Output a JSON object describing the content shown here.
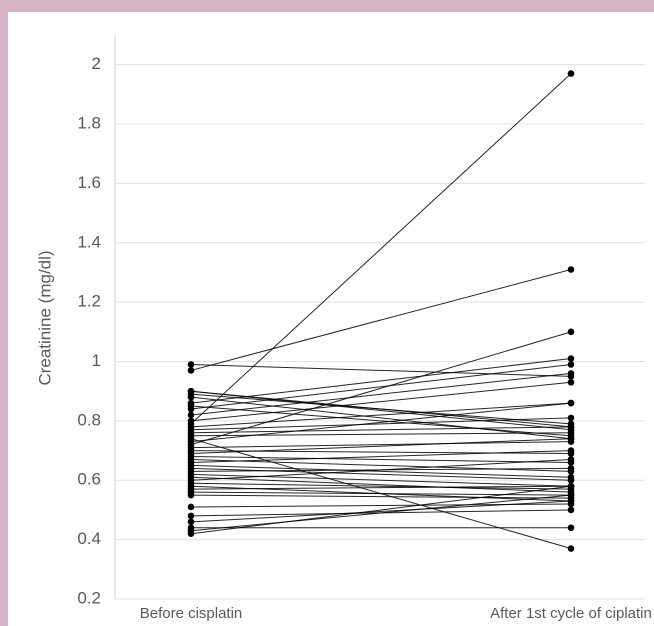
{
  "chart_data": {
    "type": "paired-line",
    "y_label": "Creatinine (mg/dl)",
    "categories": [
      "Before cisplatin",
      "After 1st cycle of ciplatin"
    ],
    "color": "#000000",
    "grid": true,
    "ylim": [
      0.2,
      2.1
    ],
    "yticks": [
      0.2,
      0.4,
      0.6,
      0.8,
      1,
      1.2,
      1.4,
      1.6,
      1.8,
      2
    ],
    "series": [
      {
        "values": [
          0.79,
          1.97
        ]
      },
      {
        "values": [
          0.97,
          1.31
        ]
      },
      {
        "values": [
          0.72,
          1.1
        ]
      },
      {
        "values": [
          0.99,
          0.95
        ]
      },
      {
        "values": [
          0.74,
          0.37
        ]
      },
      {
        "values": [
          0.9,
          0.77
        ]
      },
      {
        "values": [
          0.89,
          0.79
        ]
      },
      {
        "values": [
          0.88,
          0.74
        ]
      },
      {
        "values": [
          0.86,
          1.01
        ]
      },
      {
        "values": [
          0.84,
          0.99
        ]
      },
      {
        "values": [
          0.82,
          0.96
        ]
      },
      {
        "values": [
          0.8,
          0.93
        ]
      },
      {
        "values": [
          0.78,
          0.86
        ]
      },
      {
        "values": [
          0.77,
          0.81
        ]
      },
      {
        "values": [
          0.76,
          0.78
        ]
      },
      {
        "values": [
          0.75,
          0.76
        ]
      },
      {
        "values": [
          0.73,
          0.86
        ]
      },
      {
        "values": [
          0.71,
          0.73
        ]
      },
      {
        "values": [
          0.7,
          0.69
        ]
      },
      {
        "values": [
          0.69,
          0.74
        ]
      },
      {
        "values": [
          0.68,
          0.66
        ]
      },
      {
        "values": [
          0.67,
          0.63
        ]
      },
      {
        "values": [
          0.66,
          0.7
        ]
      },
      {
        "values": [
          0.65,
          0.61
        ]
      },
      {
        "values": [
          0.64,
          0.6
        ]
      },
      {
        "values": [
          0.63,
          0.64
        ]
      },
      {
        "values": [
          0.62,
          0.58
        ]
      },
      {
        "values": [
          0.61,
          0.56
        ]
      },
      {
        "values": [
          0.6,
          0.67
        ]
      },
      {
        "values": [
          0.59,
          0.57
        ]
      },
      {
        "values": [
          0.58,
          0.53
        ]
      },
      {
        "values": [
          0.57,
          0.58
        ]
      },
      {
        "values": [
          0.56,
          0.55
        ]
      },
      {
        "values": [
          0.55,
          0.54
        ]
      },
      {
        "values": [
          0.51,
          0.52
        ]
      },
      {
        "values": [
          0.48,
          0.5
        ]
      },
      {
        "values": [
          0.46,
          0.53
        ]
      },
      {
        "values": [
          0.44,
          0.44
        ]
      },
      {
        "values": [
          0.42,
          0.58
        ]
      },
      {
        "values": [
          0.43,
          0.55
        ]
      },
      {
        "values": [
          0.9,
          0.78
        ]
      },
      {
        "values": [
          0.85,
          0.75
        ]
      }
    ]
  }
}
